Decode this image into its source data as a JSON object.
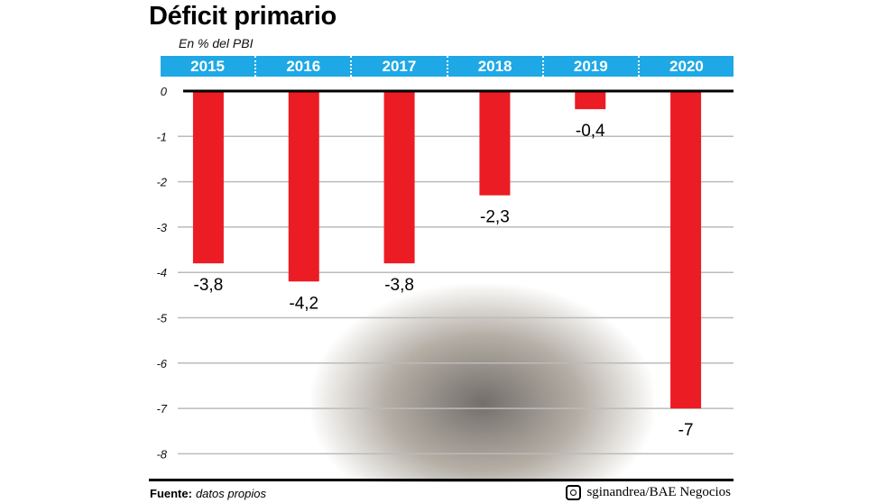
{
  "chart_data": {
    "type": "bar",
    "title": "Déficit primario",
    "subtitle": "En % del PBI",
    "categories": [
      "2015",
      "2016",
      "2017",
      "2018",
      "2019",
      "2020"
    ],
    "values": [
      -3.8,
      -4.2,
      -3.8,
      -2.3,
      -0.4,
      -7
    ],
    "data_labels": [
      "-3,8",
      "-4,2",
      "-3,8",
      "-2,3",
      "-0,4",
      "-7"
    ],
    "ylim": [
      -8,
      0
    ],
    "yticks": [
      "0",
      "-1",
      "-2",
      "-3",
      "-4",
      "-5",
      "-6",
      "-7",
      "-8"
    ],
    "grid": true,
    "bar_color": "#ec1c24",
    "header_color": "#1ea8e6"
  },
  "footer": {
    "source_label": "Fuente:",
    "source_value": "datos propios",
    "credit": "sginandrea/BAE Negocios",
    "credit_icon": "instagram-icon"
  }
}
